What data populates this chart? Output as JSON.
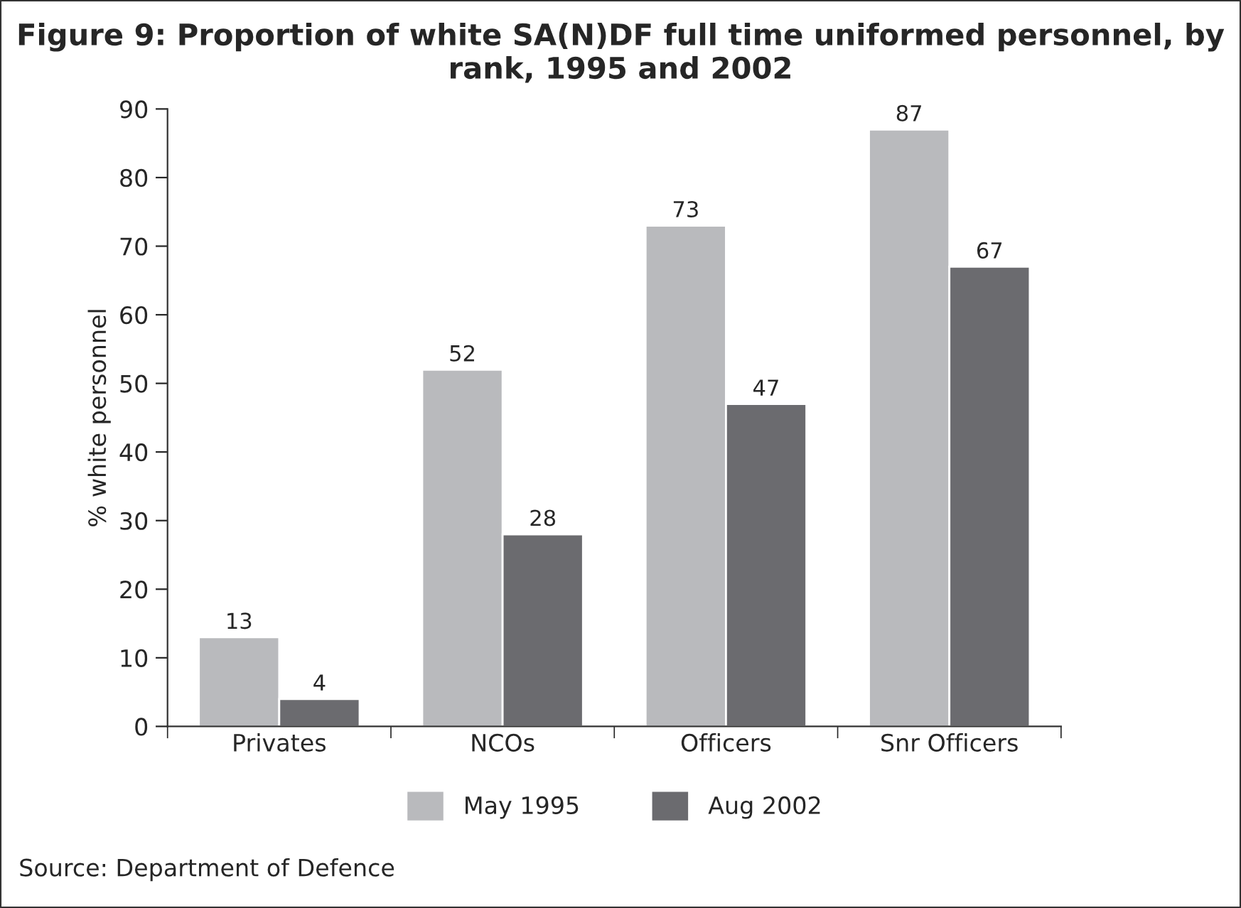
{
  "chart_data": {
    "type": "bar",
    "title": "Figure 9: Proportion of white SA(N)DF full time uniformed personnel, by rank, 1995 and 2002",
    "categories": [
      "Privates",
      "NCOs",
      "Officers",
      "Snr Officers"
    ],
    "series": [
      {
        "name": "May 1995",
        "color": "#b9babd",
        "values": [
          13,
          52,
          73,
          87
        ]
      },
      {
        "name": "Aug 2002",
        "color": "#6b6b6f",
        "values": [
          4,
          28,
          47,
          67
        ]
      }
    ],
    "ylabel": "% white personnel",
    "ylim": [
      0,
      90
    ],
    "yticks": [
      0,
      10,
      20,
      30,
      40,
      50,
      60,
      70,
      80,
      90
    ],
    "data_labels": true,
    "grid": false,
    "legend": "bottom",
    "annotations": [
      "Source: Department of Defence"
    ]
  }
}
